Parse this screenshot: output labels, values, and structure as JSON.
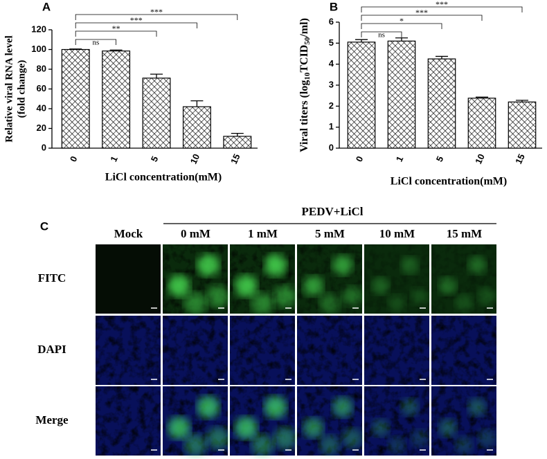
{
  "chart_data": [
    {
      "type": "bar",
      "panel_label": "A",
      "y_label_lines": [
        "Relative viral RNA level",
        "(fold change)"
      ],
      "x_label": "LiCl concentration(mM)",
      "categories": [
        "0",
        "1",
        "5",
        "10",
        "15"
      ],
      "values": [
        100,
        98.5,
        71,
        42,
        12
      ],
      "errors": [
        0.5,
        1,
        4,
        6,
        3
      ],
      "color": "#000000",
      "ylim": [
        0,
        120
      ],
      "yticks": [
        0,
        20,
        40,
        60,
        80,
        100,
        120
      ],
      "annotations": [
        {
          "groups": [
            "0",
            "1"
          ],
          "label": "ns"
        },
        {
          "groups": [
            "0",
            "5"
          ],
          "label": "**"
        },
        {
          "groups": [
            "0",
            "10"
          ],
          "label": "***"
        },
        {
          "groups": [
            "0",
            "15"
          ],
          "label": "***"
        }
      ]
    },
    {
      "type": "bar",
      "panel_label": "B",
      "y_label_parts": [
        "Viral titers (log",
        "10",
        "TCID",
        "50",
        "/ml)"
      ],
      "x_label": "LiCl concentration(mM)",
      "categories": [
        "0",
        "1",
        "5",
        "10",
        "15"
      ],
      "values": [
        5.05,
        5.1,
        4.25,
        2.38,
        2.2
      ],
      "errors": [
        0.12,
        0.15,
        0.12,
        0.05,
        0.08
      ],
      "color": "#000000",
      "ylim": [
        0,
        6
      ],
      "yticks": [
        0,
        1,
        2,
        3,
        4,
        5,
        6
      ],
      "annotations": [
        {
          "groups": [
            "0",
            "1"
          ],
          "label": "ns"
        },
        {
          "groups": [
            "0",
            "5"
          ],
          "label": "*"
        },
        {
          "groups": [
            "0",
            "10"
          ],
          "label": "***"
        },
        {
          "groups": [
            "0",
            "15"
          ],
          "label": "***"
        }
      ]
    }
  ],
  "panel_c": {
    "panel_label": "C",
    "group_header": "PEDV+LiCl",
    "columns": [
      "Mock",
      "0 mM",
      "1 mM",
      "5 mM",
      "10 mM",
      "15 mM"
    ],
    "rows": [
      "FITC",
      "DAPI",
      "Merge"
    ]
  }
}
